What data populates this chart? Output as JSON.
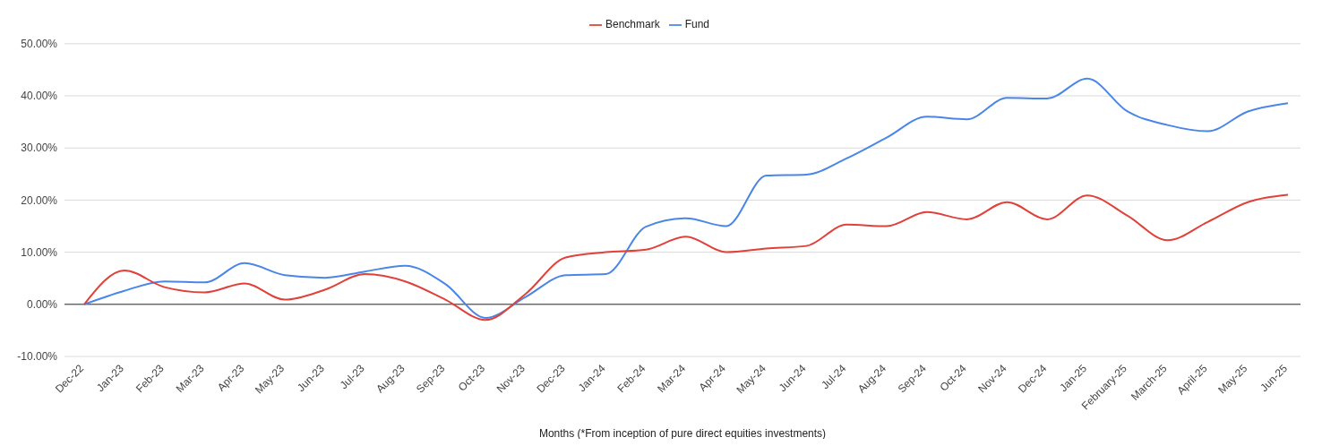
{
  "chart_data": {
    "type": "line",
    "xlabel": "Months (*From inception of pure direct equities investments)",
    "categories": [
      "Dec-22",
      "Jan-23",
      "Feb-23",
      "Mar-23",
      "Apr-23",
      "May-23",
      "Jun-23",
      "Jul-23",
      "Aug-23",
      "Sep-23",
      "Oct-23",
      "Nov-23",
      "Dec-23",
      "Jan-24",
      "Feb-24",
      "Mar-24",
      "Apr-24",
      "May-24",
      "Jun-24",
      "Jul-24",
      "Aug-24",
      "Sep-24",
      "Oct-24",
      "Nov-24",
      "Dec-24",
      "Jan-25",
      "February-25",
      "March-25",
      "April-25",
      "May-25",
      "Jun-25"
    ],
    "series": [
      {
        "name": "Fund",
        "color": "#4a86e8",
        "values": [
          0,
          2.6,
          4.4,
          4.2,
          7.9,
          5.6,
          5.1,
          6.3,
          7.4,
          3.9,
          -2.6,
          1.4,
          5.6,
          5.8,
          14.9,
          16.5,
          15,
          24.7,
          24.9,
          28,
          32,
          36,
          35.5,
          39.6,
          39.5,
          43.3,
          37,
          34.4,
          33.2,
          37,
          38.6
        ]
      },
      {
        "name": "Benchmark",
        "color": "#e0413a",
        "values": [
          0,
          6.5,
          3.3,
          2.3,
          4,
          0.9,
          2.8,
          5.8,
          4.4,
          0.9,
          -3,
          2,
          9,
          10,
          10.5,
          13,
          10,
          10.7,
          11.2,
          15.3,
          15,
          17.7,
          16.3,
          19.6,
          16.3,
          20.9,
          17,
          12.3,
          15.8,
          19.6,
          21
        ]
      }
    ],
    "ylim": [
      -10,
      50
    ],
    "yticks": [
      {
        "value": -10,
        "label": "-10.00%"
      },
      {
        "value": 0,
        "label": "0.00%"
      },
      {
        "value": 10,
        "label": "10.00%"
      },
      {
        "value": 20,
        "label": "20.00%"
      },
      {
        "value": 30,
        "label": "30.00%"
      },
      {
        "value": 40,
        "label": "40.00%"
      },
      {
        "value": 50,
        "label": "50.00%"
      }
    ],
    "ref_lines": [
      {
        "axis": "y",
        "value": 0,
        "color": "#333333"
      }
    ],
    "grid": "y",
    "legend": "top",
    "marker": "none",
    "line_style": "solid"
  }
}
